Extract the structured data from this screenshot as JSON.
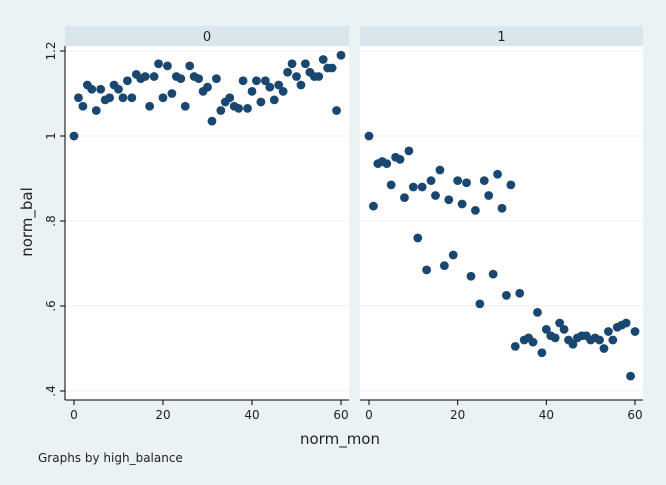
{
  "chart_data": {
    "type": "scatter",
    "xlabel": "norm_mon",
    "ylabel": "norm_bal",
    "note": "Graphs by high_balance",
    "xlim": [
      0,
      60
    ],
    "ylim": [
      0.4,
      1.2
    ],
    "x_ticks": [
      0,
      20,
      40,
      60
    ],
    "y_ticks": [
      0.4,
      0.6,
      0.8,
      1.0,
      1.2
    ],
    "y_tick_labels": [
      ".4",
      ".6",
      ".8",
      "1",
      "1.2"
    ],
    "marker_color": "#1a476f",
    "grid": true,
    "panels": [
      {
        "label": "0",
        "x": [
          0,
          1,
          2,
          3,
          4,
          5,
          6,
          7,
          8,
          9,
          10,
          11,
          12,
          13,
          14,
          15,
          16,
          17,
          18,
          19,
          20,
          21,
          22,
          23,
          24,
          25,
          26,
          27,
          28,
          29,
          30,
          31,
          32,
          33,
          34,
          35,
          36,
          37,
          38,
          39,
          40,
          41,
          42,
          43,
          44,
          45,
          46,
          47,
          48,
          49,
          50,
          51,
          52,
          53,
          54,
          55,
          56,
          57,
          58,
          59,
          60
        ],
        "y": [
          1.0,
          1.09,
          1.07,
          1.12,
          1.11,
          1.06,
          1.11,
          1.085,
          1.09,
          1.12,
          1.11,
          1.09,
          1.13,
          1.09,
          1.145,
          1.135,
          1.14,
          1.07,
          1.14,
          1.17,
          1.09,
          1.165,
          1.1,
          1.14,
          1.135,
          1.07,
          1.165,
          1.14,
          1.135,
          1.105,
          1.115,
          1.035,
          1.135,
          1.06,
          1.08,
          1.09,
          1.07,
          1.065,
          1.13,
          1.065,
          1.105,
          1.13,
          1.08,
          1.13,
          1.115,
          1.085,
          1.12,
          1.105,
          1.15,
          1.17,
          1.14,
          1.12,
          1.17,
          1.15,
          1.14,
          1.14,
          1.18,
          1.16,
          1.16,
          1.06,
          1.19
        ]
      },
      {
        "label": "1",
        "x": [
          0,
          1,
          2,
          3,
          4,
          5,
          6,
          7,
          8,
          9,
          10,
          11,
          12,
          13,
          14,
          15,
          16,
          17,
          18,
          19,
          20,
          21,
          22,
          23,
          24,
          25,
          26,
          27,
          28,
          29,
          30,
          31,
          32,
          33,
          34,
          35,
          36,
          37,
          38,
          39,
          40,
          41,
          42,
          43,
          44,
          45,
          46,
          47,
          48,
          49,
          50,
          51,
          52,
          53,
          54,
          55,
          56,
          57,
          58,
          59,
          60
        ],
        "y": [
          1.0,
          0.835,
          0.935,
          0.94,
          0.935,
          0.885,
          0.95,
          0.945,
          0.855,
          0.965,
          0.88,
          0.76,
          0.88,
          0.685,
          0.895,
          0.86,
          0.92,
          0.695,
          0.85,
          0.72,
          0.895,
          0.84,
          0.89,
          0.67,
          0.825,
          0.605,
          0.895,
          0.86,
          0.675,
          0.91,
          0.83,
          0.625,
          0.885,
          0.505,
          0.63,
          0.52,
          0.525,
          0.515,
          0.585,
          0.49,
          0.545,
          0.53,
          0.525,
          0.56,
          0.545,
          0.52,
          0.51,
          0.525,
          0.53,
          0.53,
          0.52,
          0.525,
          0.52,
          0.5,
          0.54,
          0.52,
          0.55,
          0.555,
          0.56,
          0.435,
          0.54
        ]
      }
    ]
  }
}
